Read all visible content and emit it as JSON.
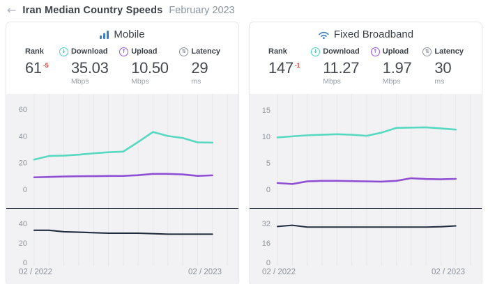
{
  "header": {
    "title": "Iran Median Country Speeds",
    "subtitle": "February 2023"
  },
  "icons": {
    "back_glyph": "←",
    "download_glyph": "↓",
    "upload_glyph": "↑",
    "latency_glyph": "⇅"
  },
  "colors": {
    "accent_blue": "#3b7fc4",
    "download_teal": "#56d9c0",
    "upload_purple": "#8f4fd4",
    "latency_dark": "#222c3f",
    "rank_delta_red": "#e0473d",
    "chart_bg": "#f2f2f4"
  },
  "mobile": {
    "title": "Mobile",
    "stats": {
      "rank": {
        "label": "Rank",
        "value": "61",
        "delta": "-5"
      },
      "download": {
        "label": "Download",
        "value": "35.03",
        "unit": "Mbps"
      },
      "upload": {
        "label": "Upload",
        "value": "10.50",
        "unit": "Mbps"
      },
      "latency": {
        "label": "Latency",
        "value": "29",
        "unit": "ms"
      }
    },
    "axis_start": "02 / 2022",
    "axis_end": "02 / 2023"
  },
  "fixed": {
    "title": "Fixed Broadband",
    "stats": {
      "rank": {
        "label": "Rank",
        "value": "147",
        "delta": "-1"
      },
      "download": {
        "label": "Download",
        "value": "11.27",
        "unit": "Mbps"
      },
      "upload": {
        "label": "Upload",
        "value": "1.97",
        "unit": "Mbps"
      },
      "latency": {
        "label": "Latency",
        "value": "30",
        "unit": "ms"
      }
    },
    "axis_start": "02 / 2022",
    "axis_end": "02 / 2023"
  },
  "chart_data": [
    {
      "type": "line",
      "panel": "mobile-speed",
      "title": "Mobile median download / upload speed (Mbps)",
      "x": [
        "02/2022",
        "03/2022",
        "04/2022",
        "05/2022",
        "06/2022",
        "07/2022",
        "08/2022",
        "09/2022",
        "10/2022",
        "11/2022",
        "12/2022",
        "01/2023",
        "02/2023"
      ],
      "ylim": [
        0,
        71.5
      ],
      "yticks": [
        60,
        40,
        20,
        0
      ],
      "grid": "vertical",
      "series": [
        {
          "name": "Download",
          "color": "#56d9c0",
          "values": [
            22.3,
            25.0,
            25.3,
            26.0,
            27.0,
            27.8,
            28.3,
            35.5,
            43.0,
            40.0,
            38.5,
            35.2,
            35.03
          ]
        },
        {
          "name": "Upload",
          "color": "#8f4fd4",
          "values": [
            9.0,
            9.3,
            9.6,
            9.8,
            9.9,
            10.0,
            10.1,
            10.6,
            11.6,
            11.6,
            11.2,
            10.1,
            10.5
          ]
        }
      ]
    },
    {
      "type": "line",
      "panel": "mobile-latency",
      "title": "Mobile median latency (ms)",
      "x": [
        "02/2022",
        "03/2022",
        "04/2022",
        "05/2022",
        "06/2022",
        "07/2022",
        "08/2022",
        "09/2022",
        "10/2022",
        "11/2022",
        "12/2022",
        "01/2023",
        "02/2023"
      ],
      "ylim": [
        0,
        55
      ],
      "yticks": [
        40,
        20,
        0
      ],
      "grid": "vertical",
      "series": [
        {
          "name": "Latency",
          "color": "#222c3f",
          "values": [
            33,
            33,
            31.5,
            31,
            30.5,
            30,
            30,
            30,
            29.5,
            29,
            29,
            29,
            29
          ]
        }
      ]
    },
    {
      "type": "line",
      "panel": "fixed-speed",
      "title": "Fixed broadband median download / upload speed (Mbps)",
      "x": [
        "02/2022",
        "03/2022",
        "04/2022",
        "05/2022",
        "06/2022",
        "07/2022",
        "08/2022",
        "09/2022",
        "10/2022",
        "11/2022",
        "12/2022",
        "01/2023",
        "02/2023"
      ],
      "ylim": [
        0,
        18
      ],
      "yticks": [
        15,
        10,
        5,
        0
      ],
      "grid": "vertical",
      "series": [
        {
          "name": "Download",
          "color": "#56d9c0",
          "values": [
            9.8,
            10.0,
            10.2,
            10.3,
            10.4,
            10.3,
            10.1,
            10.7,
            11.6,
            11.65,
            11.7,
            11.5,
            11.27
          ]
        },
        {
          "name": "Upload",
          "color": "#8f4fd4",
          "values": [
            1.2,
            1.0,
            1.5,
            1.6,
            1.6,
            1.55,
            1.5,
            1.45,
            1.6,
            2.1,
            1.95,
            1.9,
            1.97
          ]
        }
      ]
    },
    {
      "type": "line",
      "panel": "fixed-latency",
      "title": "Fixed broadband median latency (ms)",
      "x": [
        "02/2022",
        "03/2022",
        "04/2022",
        "05/2022",
        "06/2022",
        "07/2022",
        "08/2022",
        "09/2022",
        "10/2022",
        "11/2022",
        "12/2022",
        "01/2023",
        "02/2023"
      ],
      "ylim": [
        0,
        44
      ],
      "yticks": [
        32,
        16,
        0
      ],
      "grid": "vertical",
      "series": [
        {
          "name": "Latency",
          "color": "#222c3f",
          "values": [
            29.5,
            30.5,
            29,
            29,
            29,
            29,
            29,
            29,
            29,
            29,
            29,
            29.3,
            30
          ]
        }
      ]
    }
  ]
}
